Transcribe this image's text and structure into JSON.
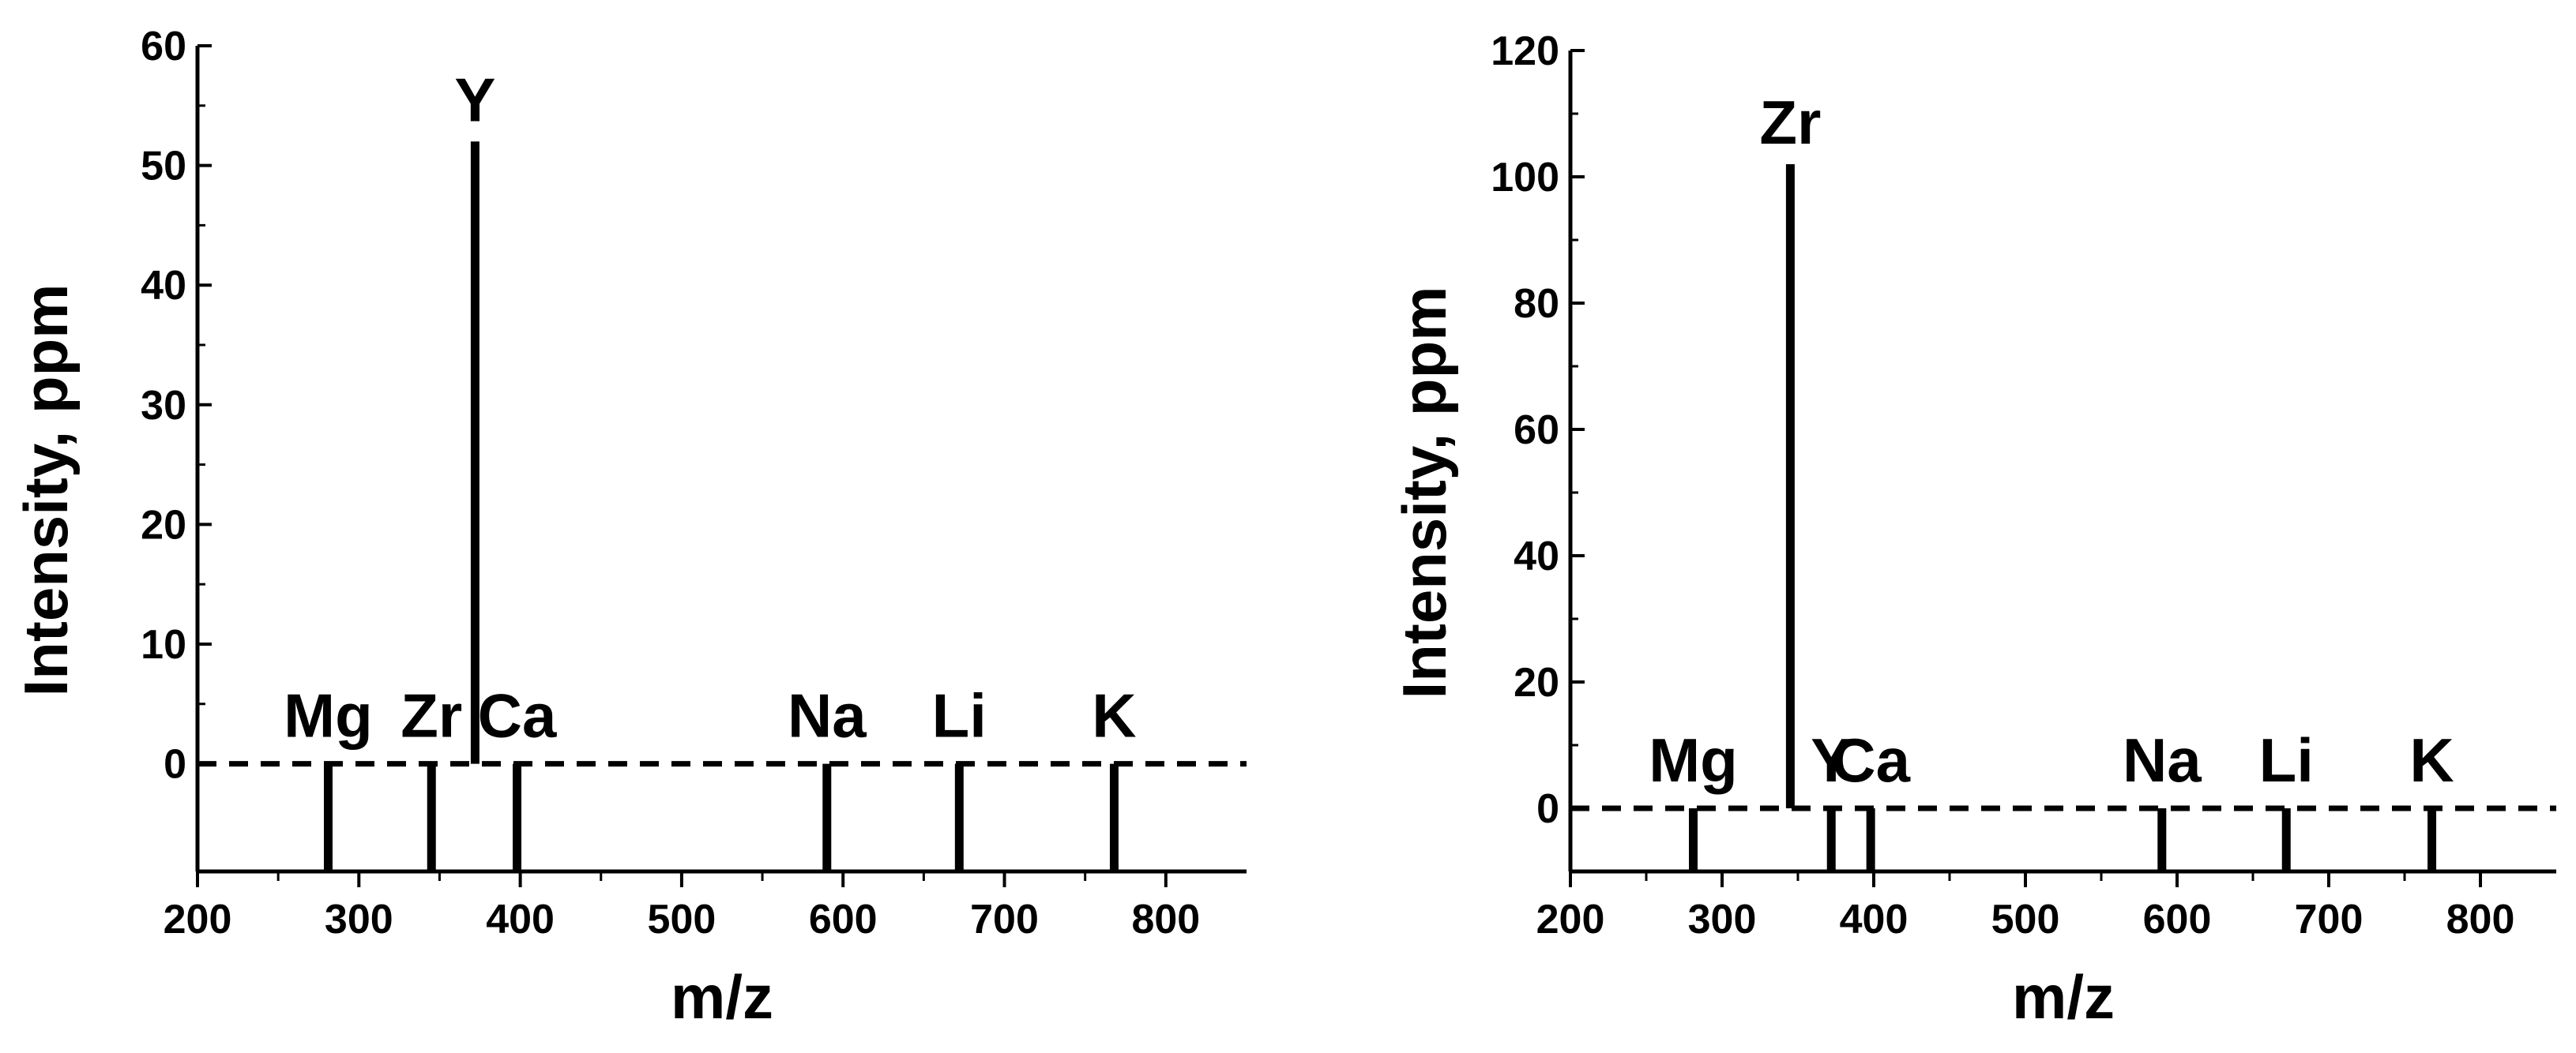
{
  "chart_data": [
    {
      "type": "bar",
      "xlabel": "m/z",
      "ylabel": "Intensity, ppm",
      "xlim": [
        200,
        850
      ],
      "ylim": [
        -9,
        60
      ],
      "xticks": [
        200,
        300,
        400,
        500,
        600,
        700,
        800
      ],
      "yticks": [
        0,
        10,
        20,
        30,
        40,
        50,
        60
      ],
      "baseline": 0,
      "peaks": [
        {
          "label": "Mg",
          "x": 281,
          "y": -9
        },
        {
          "label": "Zr",
          "x": 345,
          "y": -9
        },
        {
          "label": "Y",
          "x": 372,
          "y": 52
        },
        {
          "label": "Ca",
          "x": 398,
          "y": -9
        },
        {
          "label": "Na",
          "x": 590,
          "y": -9
        },
        {
          "label": "Li",
          "x": 672,
          "y": -9
        },
        {
          "label": "K",
          "x": 768,
          "y": -9
        }
      ]
    },
    {
      "type": "bar",
      "xlabel": "m/z",
      "ylabel": "Intensity, ppm",
      "xlim": [
        200,
        850
      ],
      "ylim": [
        -10,
        120
      ],
      "xticks": [
        200,
        300,
        400,
        500,
        600,
        700,
        800
      ],
      "yticks": [
        0,
        20,
        40,
        60,
        80,
        100,
        120
      ],
      "baseline": 0,
      "peaks": [
        {
          "label": "Mg",
          "x": 281,
          "y": -10
        },
        {
          "label": "Zr",
          "x": 345,
          "y": 102
        },
        {
          "label": "Y",
          "x": 372,
          "y": -10
        },
        {
          "label": "Ca",
          "x": 398,
          "y": -10
        },
        {
          "label": "Na",
          "x": 590,
          "y": -10
        },
        {
          "label": "Li",
          "x": 672,
          "y": -10
        },
        {
          "label": "K",
          "x": 768,
          "y": -10
        }
      ]
    }
  ]
}
